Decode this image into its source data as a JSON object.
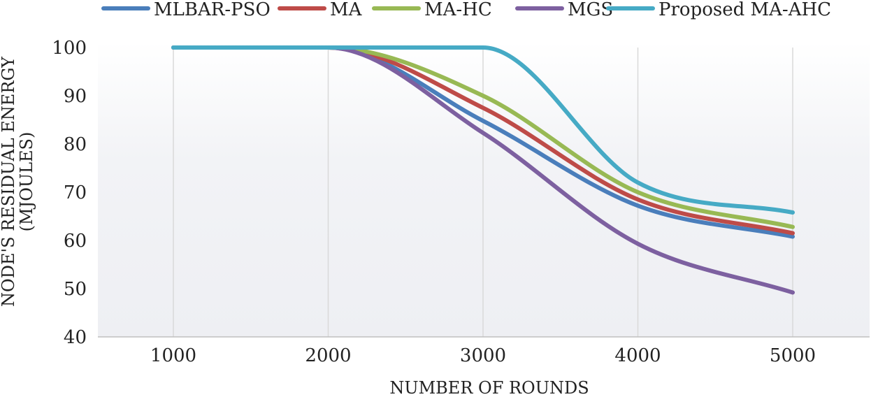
{
  "chart_data": {
    "type": "line",
    "title": "",
    "xlabel": "NUMBER OF ROUNDS",
    "ylabel_lines": [
      "NODE'S RESIDUAL ENERGY",
      "(MJOULES)"
    ],
    "x": [
      1000,
      2000,
      3000,
      4000,
      5000
    ],
    "x_tick_labels": [
      "1000",
      "2000",
      "3000",
      "4000",
      "5000"
    ],
    "ylim": [
      40,
      100
    ],
    "y_tick_labels": [
      "40",
      "50",
      "60",
      "70",
      "80",
      "90",
      "100"
    ],
    "grid": "vertical",
    "legend_position": "top",
    "series": [
      {
        "name": "MLBAR-PSO",
        "color": "#4a7ebb",
        "values": [
          100,
          100,
          84.8,
          67.2,
          60.8
        ]
      },
      {
        "name": "MA",
        "color": "#be4b48",
        "values": [
          100,
          100,
          87.5,
          68.5,
          61.5
        ]
      },
      {
        "name": "MA-HC",
        "color": "#98b954",
        "values": [
          100,
          100,
          90,
          70,
          62.8
        ]
      },
      {
        "name": "MGS",
        "color": "#7d60a0",
        "values": [
          100,
          100,
          82.3,
          59.3,
          49.2
        ]
      },
      {
        "name": "Proposed MA-AHC",
        "color": "#46aac5",
        "values": [
          100,
          100,
          100,
          72,
          65.8
        ]
      }
    ]
  }
}
